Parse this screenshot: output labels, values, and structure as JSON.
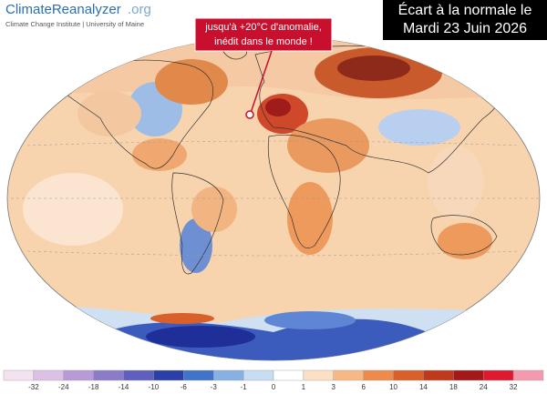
{
  "header": {
    "logo_main": "ClimateReanalyzer",
    "logo_suffix": ".org",
    "subtitle": "Climate Change Institute | University of Maine"
  },
  "title_box": {
    "line1": "Écart à la normale le",
    "line2": "Mardi 23 Juin 2026"
  },
  "annotation": {
    "line1": "jusqu'à +20°C d'anomalie,",
    "line2": "inédit dans le monde !"
  },
  "colorbar": {
    "labels": [
      -32,
      -24,
      -18,
      -14,
      -10,
      -6,
      -3,
      -1,
      0,
      1,
      3,
      6,
      10,
      14,
      18,
      24,
      32
    ],
    "colors": [
      "#f3e3f1",
      "#dcc0e6",
      "#b79ad6",
      "#8c7cc8",
      "#5f5fbd",
      "#2a3fa8",
      "#3f74c9",
      "#86b1e2",
      "#c7ddf3",
      "#ffffff",
      "#fbe0c4",
      "#f6b985",
      "#ee8a4c",
      "#d9602a",
      "#bf3a1c",
      "#a41818",
      "#e01a2e",
      "#f49ab0"
    ]
  }
}
